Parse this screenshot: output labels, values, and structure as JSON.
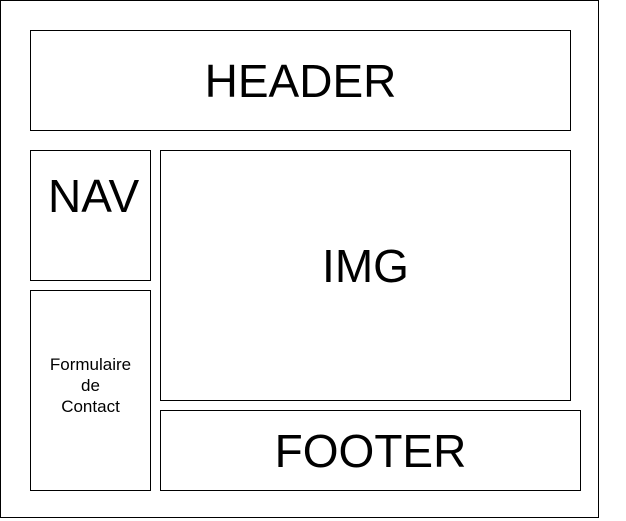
{
  "diagram": {
    "header": "HEADER",
    "nav": "NAV",
    "image": "IMG",
    "footer": "FOOTER",
    "contact_form": [
      "Formulaire",
      "de",
      "Contact"
    ]
  }
}
